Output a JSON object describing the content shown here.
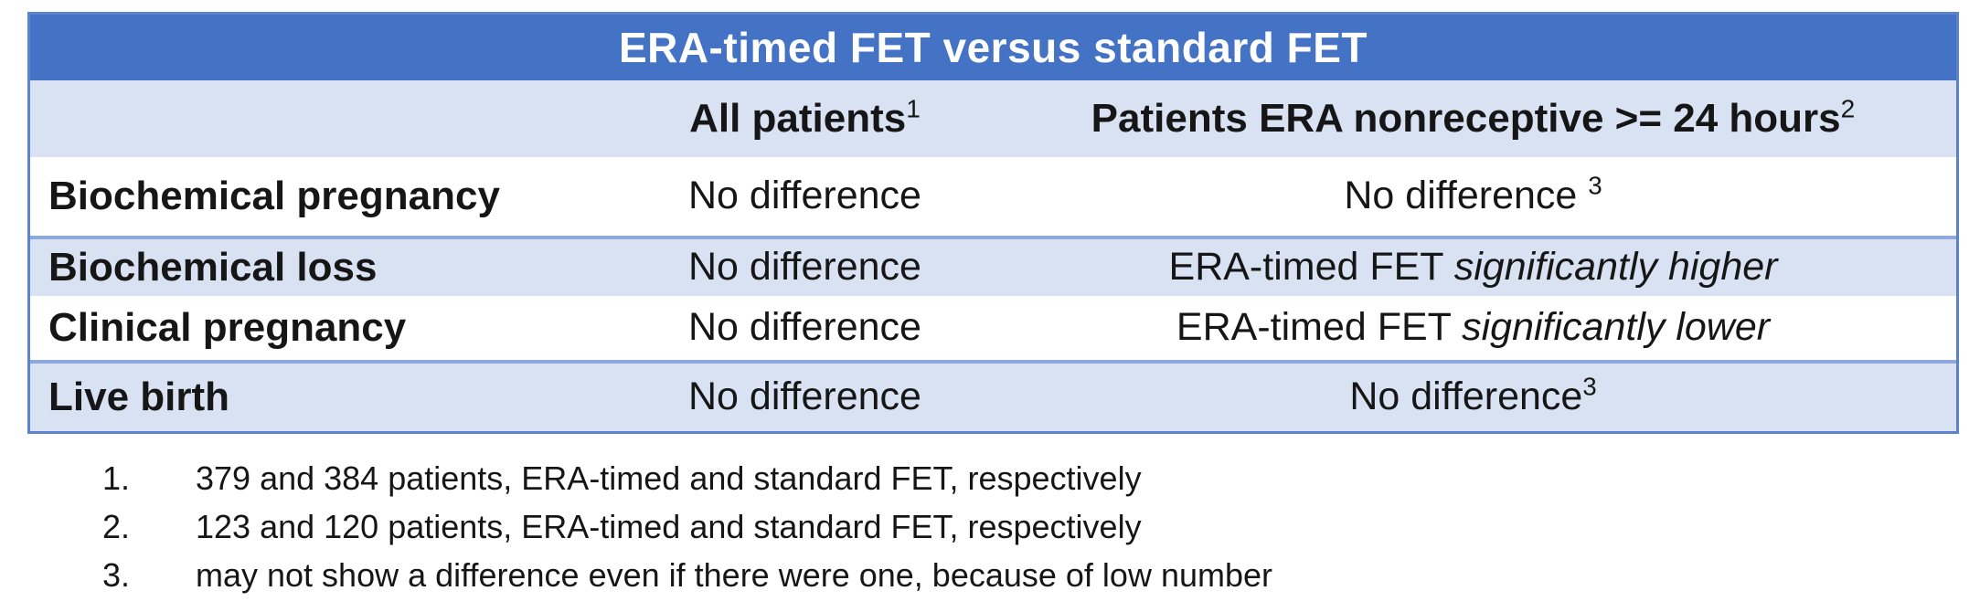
{
  "colors": {
    "title_bg": "#4472c4",
    "band_bg": "#d9e2f3",
    "divider": "#8ea9db",
    "outer_border": "#5b82cd"
  },
  "table": {
    "title": "ERA-timed FET versus standard FET",
    "col_headers": {
      "col1_label": "",
      "col2_label": "All patients",
      "col2_sup": "1",
      "col3_label": "Patients ERA nonreceptive >= 24 hours",
      "col3_sup": "2"
    },
    "rows": [
      {
        "label": "Biochemical pregnancy",
        "all_patients": "No difference",
        "nonreceptive_text": "No difference ",
        "nonreceptive_italic": "",
        "nonreceptive_sup": "3"
      },
      {
        "label": "Biochemical loss",
        "all_patients": "No difference",
        "nonreceptive_text": "ERA-timed FET ",
        "nonreceptive_italic": "significantly higher",
        "nonreceptive_sup": ""
      },
      {
        "label": "Clinical pregnancy",
        "all_patients": "No difference",
        "nonreceptive_text": "ERA-timed FET ",
        "nonreceptive_italic": "significantly lower",
        "nonreceptive_sup": ""
      },
      {
        "label": "Live birth",
        "all_patients": "No difference",
        "nonreceptive_text": "No difference",
        "nonreceptive_italic": "",
        "nonreceptive_sup": "3"
      }
    ]
  },
  "footnotes": [
    {
      "num": "1.",
      "text": "379 and 384 patients, ERA-timed and standard FET, respectively"
    },
    {
      "num": "2.",
      "text": "123 and 120 patients, ERA-timed and standard FET, respectively"
    },
    {
      "num": "3.",
      "text": "may not show a difference even if there were one, because of low number"
    }
  ]
}
